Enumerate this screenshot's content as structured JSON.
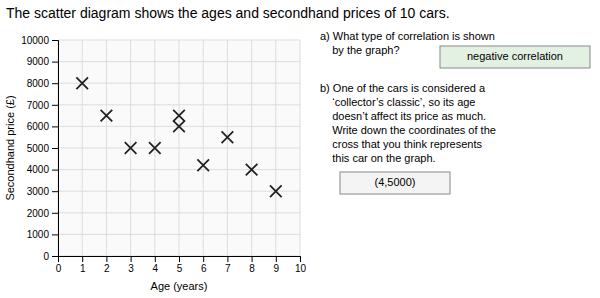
{
  "chart_data": {
    "type": "scatter",
    "title": "The scatter diagram shows the ages and secondhand prices of 10 cars.",
    "x_label": "Age (years)",
    "y_label": "Secondhand price (£)",
    "x": [
      1,
      2,
      3,
      4,
      5,
      5,
      6,
      7,
      8,
      9
    ],
    "values": [
      8000,
      6500,
      5000,
      5000,
      6500,
      6000,
      4200,
      5500,
      4000,
      3000
    ],
    "xlim": [
      0,
      10
    ],
    "ylim": [
      0,
      10000
    ],
    "xticks": [
      0,
      1,
      2,
      3,
      4,
      5,
      6,
      7,
      8,
      9,
      10
    ],
    "yticks": [
      0,
      1000,
      2000,
      3000,
      4000,
      5000,
      6000,
      7000,
      8000,
      9000,
      10000
    ],
    "grid": true,
    "marker": "x",
    "color": "#222222",
    "annotations": [
      "a) What type of correlation is shown\n    by the graph?",
      "negative correlation",
      "b) One of the cars is considered a\n    ‘collector’s classic’, so its age\n    doesn’t affect its price as much.\n    Write down the coordinates of the\n    cross that you think represents\n    this car on the graph.",
      "(4,5000)"
    ]
  }
}
